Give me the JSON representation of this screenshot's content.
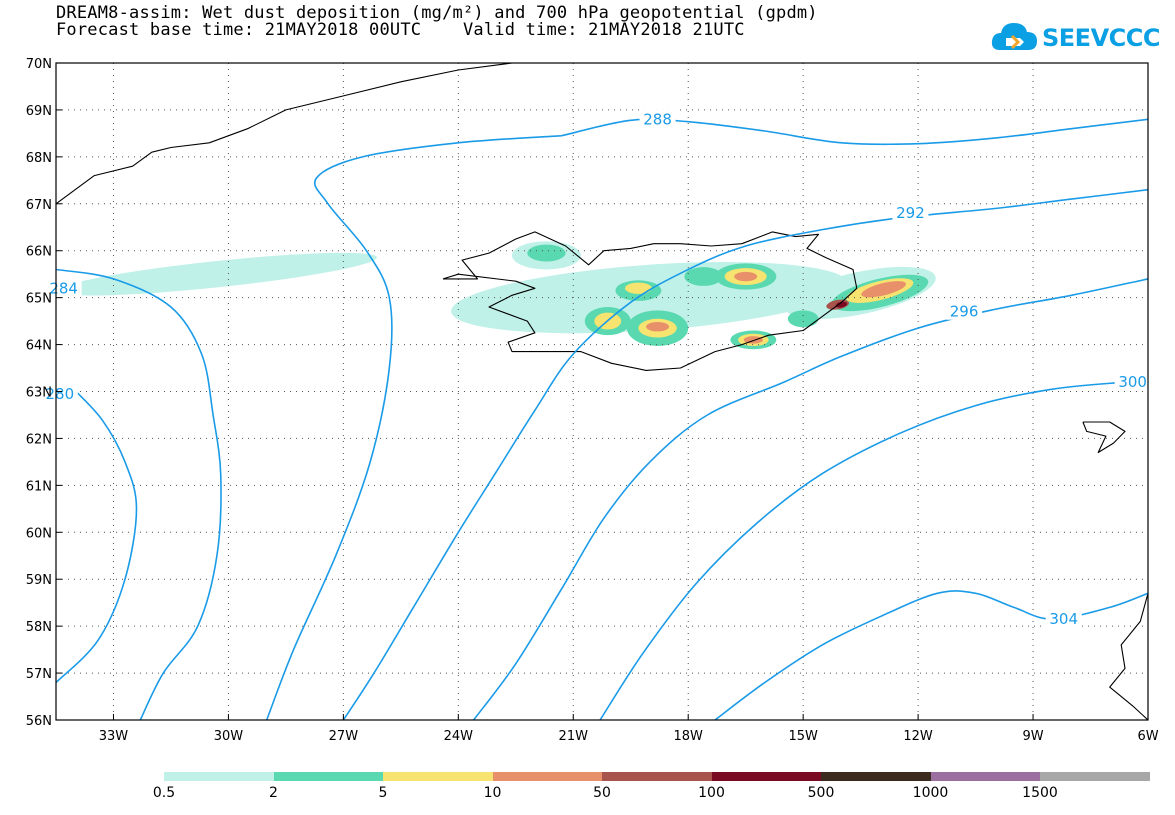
{
  "title": {
    "line1": "DREAM8-assim: Wet dust deposition (mg/m²) and 700 hPa geopotential (gpdm)",
    "line2": "Forecast base time: 21MAY2018 00UTC    Valid time: 21MAY2018 21UTC"
  },
  "logo": {
    "text": "SEEVCCC",
    "icon": "cloud-icon"
  },
  "chart_data": {
    "type": "map",
    "projection": "lat-lon",
    "xlim": [
      -34.5,
      -6
    ],
    "ylim": [
      56,
      70
    ],
    "grid": "dotted",
    "x_ticks": [
      {
        "value": -33,
        "label": "33W"
      },
      {
        "value": -30,
        "label": "30W"
      },
      {
        "value": -27,
        "label": "27W"
      },
      {
        "value": -24,
        "label": "24W"
      },
      {
        "value": -21,
        "label": "21W"
      },
      {
        "value": -18,
        "label": "18W"
      },
      {
        "value": -15,
        "label": "15W"
      },
      {
        "value": -12,
        "label": "12W"
      },
      {
        "value": -9,
        "label": "9W"
      },
      {
        "value": -6,
        "label": "6W"
      }
    ],
    "y_ticks": [
      {
        "value": 70,
        "label": "70N"
      },
      {
        "value": 69,
        "label": "69N"
      },
      {
        "value": 68,
        "label": "68N"
      },
      {
        "value": 67,
        "label": "67N"
      },
      {
        "value": 66,
        "label": "66N"
      },
      {
        "value": 65,
        "label": "65N"
      },
      {
        "value": 64,
        "label": "64N"
      },
      {
        "value": 63,
        "label": "63N"
      },
      {
        "value": 62,
        "label": "62N"
      },
      {
        "value": 61,
        "label": "61N"
      },
      {
        "value": 60,
        "label": "60N"
      },
      {
        "value": 59,
        "label": "59N"
      },
      {
        "value": 58,
        "label": "58N"
      },
      {
        "value": 57,
        "label": "57N"
      },
      {
        "value": 56,
        "label": "56N"
      }
    ],
    "contour_color": "#1a9be8",
    "contours": [
      {
        "label": "284",
        "label_pos": [
          -34.3,
          65.2
        ],
        "points": [
          [
            -34.5,
            65.6
          ],
          [
            -33,
            65.4
          ],
          [
            -31.5,
            64.8
          ],
          [
            -30.7,
            63.8
          ],
          [
            -30.4,
            62.5
          ],
          [
            -30.2,
            61.2
          ],
          [
            -30.3,
            59.5
          ],
          [
            -30.8,
            58
          ],
          [
            -31.7,
            57
          ],
          [
            -32.3,
            56
          ]
        ]
      },
      {
        "label": "280",
        "label_pos": [
          -34.4,
          62.95
        ],
        "points": [
          [
            -34.1,
            63.1
          ],
          [
            -33.3,
            62.4
          ],
          [
            -32.7,
            61.5
          ],
          [
            -32.4,
            60.5
          ],
          [
            -32.7,
            59
          ],
          [
            -33.4,
            57.7
          ],
          [
            -34.5,
            56.8
          ]
        ]
      },
      {
        "label": "",
        "label_pos": null,
        "points": [
          [
            -21.3,
            68.45
          ],
          [
            -24,
            68.3
          ],
          [
            -26.5,
            68
          ],
          [
            -27.7,
            67.55
          ],
          [
            -27.4,
            67
          ],
          [
            -26.4,
            66
          ],
          [
            -25.8,
            65
          ],
          [
            -25.8,
            63.5
          ],
          [
            -26.3,
            61.5
          ],
          [
            -27.2,
            59.5
          ],
          [
            -28.3,
            57.5
          ],
          [
            -29,
            56
          ]
        ]
      },
      {
        "label": "288",
        "label_pos": [
          -18.8,
          68.8
        ],
        "points": [
          [
            -21.3,
            68.45
          ],
          [
            -19.5,
            68.78
          ],
          [
            -18,
            68.75
          ],
          [
            -16,
            68.55
          ],
          [
            -14,
            68.3
          ],
          [
            -12,
            68.28
          ],
          [
            -10,
            68.4
          ],
          [
            -8,
            68.6
          ],
          [
            -6,
            68.8
          ]
        ]
      },
      {
        "label": "292",
        "label_pos": [
          -12.2,
          66.8
        ],
        "points": [
          [
            -6,
            67.3
          ],
          [
            -8,
            67.1
          ],
          [
            -10,
            66.9
          ],
          [
            -12.5,
            66.7
          ],
          [
            -14.5,
            66.45
          ],
          [
            -16.5,
            66.1
          ],
          [
            -18,
            65.6
          ],
          [
            -19.5,
            64.9
          ],
          [
            -21,
            63.8
          ],
          [
            -22,
            62.6
          ],
          [
            -23,
            61.3
          ],
          [
            -24,
            60
          ],
          [
            -25.1,
            58.5
          ],
          [
            -26.2,
            57
          ],
          [
            -27,
            56
          ]
        ]
      },
      {
        "label": "296",
        "label_pos": [
          -10.8,
          64.7
        ],
        "points": [
          [
            -6,
            65.4
          ],
          [
            -8,
            65.05
          ],
          [
            -10,
            64.75
          ],
          [
            -12,
            64.35
          ],
          [
            -14,
            63.75
          ],
          [
            -15.5,
            63.2
          ],
          [
            -17.5,
            62.5
          ],
          [
            -19,
            61.5
          ],
          [
            -20.2,
            60.3
          ],
          [
            -21.3,
            58.8
          ],
          [
            -22.5,
            57.2
          ],
          [
            -23.6,
            56
          ]
        ]
      },
      {
        "label": "300",
        "label_pos": [
          -6.4,
          63.2
        ],
        "points": [
          [
            -6.6,
            63.2
          ],
          [
            -8.5,
            63.05
          ],
          [
            -10.5,
            62.7
          ],
          [
            -12.5,
            62.1
          ],
          [
            -14.5,
            61.25
          ],
          [
            -16.2,
            60.2
          ],
          [
            -17.8,
            58.9
          ],
          [
            -19.2,
            57.4
          ],
          [
            -20.3,
            56
          ]
        ]
      },
      {
        "label": "304",
        "label_pos": [
          -8.2,
          58.15
        ],
        "points": [
          [
            -6,
            58.7
          ],
          [
            -7,
            58.4
          ],
          [
            -8.5,
            58.15
          ],
          [
            -9.5,
            58.4
          ],
          [
            -10.5,
            58.7
          ],
          [
            -11.5,
            58.7
          ],
          [
            -13,
            58.2
          ],
          [
            -14.5,
            57.6
          ],
          [
            -16,
            56.8
          ],
          [
            -17.3,
            56
          ]
        ]
      }
    ],
    "legend": {
      "labels": [
        "0.5",
        "2",
        "5",
        "10",
        "50",
        "100",
        "500",
        "1000",
        "1500"
      ],
      "colors": [
        "#bff1e8",
        "#5ad9b0",
        "#f7e36f",
        "#e8906a",
        "#a8534c",
        "#7a0a22",
        "#3b2a1e",
        "#9b6fa0",
        "#a7a7a7"
      ]
    },
    "deposition": [
      {
        "level": 0,
        "cx": -30.3,
        "cy": 65.5,
        "rx": 4.2,
        "ry": 0.28,
        "rot": -6
      },
      {
        "level": 0,
        "cx": -19,
        "cy": 65.0,
        "rx": 5.2,
        "ry": 0.7,
        "rot": -4
      },
      {
        "level": 0,
        "cx": -13.5,
        "cy": 65.1,
        "rx": 2.0,
        "ry": 0.45,
        "rot": -12
      },
      {
        "level": 0,
        "cx": -21.7,
        "cy": 65.9,
        "rx": 0.9,
        "ry": 0.3,
        "rot": 0
      },
      {
        "level": 1,
        "cx": -21.7,
        "cy": 65.95,
        "rx": 0.5,
        "ry": 0.18,
        "rot": 0
      },
      {
        "level": 1,
        "cx": -20.1,
        "cy": 64.5,
        "rx": 0.6,
        "ry": 0.3,
        "rot": 0
      },
      {
        "level": 1,
        "cx": -18.8,
        "cy": 64.35,
        "rx": 0.8,
        "ry": 0.38,
        "rot": 0
      },
      {
        "level": 1,
        "cx": -19.3,
        "cy": 65.15,
        "rx": 0.6,
        "ry": 0.22,
        "rot": 0
      },
      {
        "level": 1,
        "cx": -16.5,
        "cy": 65.45,
        "rx": 0.8,
        "ry": 0.28,
        "rot": 0
      },
      {
        "level": 1,
        "cx": -17.6,
        "cy": 65.45,
        "rx": 0.5,
        "ry": 0.2,
        "rot": 0
      },
      {
        "level": 1,
        "cx": -16.3,
        "cy": 64.1,
        "rx": 0.6,
        "ry": 0.2,
        "rot": 0
      },
      {
        "level": 1,
        "cx": -15.0,
        "cy": 64.55,
        "rx": 0.4,
        "ry": 0.18,
        "rot": 0
      },
      {
        "level": 1,
        "cx": -13.0,
        "cy": 65.1,
        "rx": 1.3,
        "ry": 0.3,
        "rot": -14
      },
      {
        "level": 2,
        "cx": -20.1,
        "cy": 64.5,
        "rx": 0.35,
        "ry": 0.18,
        "rot": 0
      },
      {
        "level": 2,
        "cx": -18.8,
        "cy": 64.35,
        "rx": 0.5,
        "ry": 0.2,
        "rot": 0
      },
      {
        "level": 2,
        "cx": -19.3,
        "cy": 65.2,
        "rx": 0.35,
        "ry": 0.12,
        "rot": 0
      },
      {
        "level": 2,
        "cx": -16.5,
        "cy": 65.45,
        "rx": 0.55,
        "ry": 0.18,
        "rot": 0
      },
      {
        "level": 2,
        "cx": -16.3,
        "cy": 64.1,
        "rx": 0.4,
        "ry": 0.13,
        "rot": 0
      },
      {
        "level": 2,
        "cx": -13.0,
        "cy": 65.15,
        "rx": 0.9,
        "ry": 0.2,
        "rot": -14
      },
      {
        "level": 3,
        "cx": -18.8,
        "cy": 64.38,
        "rx": 0.3,
        "ry": 0.1,
        "rot": 0
      },
      {
        "level": 3,
        "cx": -16.5,
        "cy": 65.45,
        "rx": 0.3,
        "ry": 0.1,
        "rot": 0
      },
      {
        "level": 3,
        "cx": -16.3,
        "cy": 64.1,
        "rx": 0.25,
        "ry": 0.08,
        "rot": 0
      },
      {
        "level": 3,
        "cx": -12.9,
        "cy": 65.18,
        "rx": 0.6,
        "ry": 0.13,
        "rot": -14
      },
      {
        "level": 4,
        "cx": -14.1,
        "cy": 64.85,
        "rx": 0.3,
        "ry": 0.1,
        "rot": -10
      },
      {
        "level": 5,
        "cx": -14.0,
        "cy": 64.85,
        "rx": 0.15,
        "ry": 0.06,
        "rot": -10
      }
    ],
    "coast": [
      {
        "name": "iceland",
        "points": [
          [
            -24.4,
            65.4
          ],
          [
            -23.5,
            65.4
          ],
          [
            -23.9,
            65.8
          ],
          [
            -23.2,
            65.95
          ],
          [
            -22.5,
            66.25
          ],
          [
            -22.0,
            66.4
          ],
          [
            -21.2,
            66.1
          ],
          [
            -20.6,
            65.7
          ],
          [
            -20.2,
            66.0
          ],
          [
            -19.5,
            66.05
          ],
          [
            -18.9,
            66.15
          ],
          [
            -18.2,
            66.15
          ],
          [
            -17.4,
            66.1
          ],
          [
            -16.6,
            66.15
          ],
          [
            -15.8,
            66.4
          ],
          [
            -15.2,
            66.3
          ],
          [
            -14.6,
            66.35
          ],
          [
            -14.9,
            66.05
          ],
          [
            -14.4,
            65.85
          ],
          [
            -13.7,
            65.6
          ],
          [
            -13.6,
            65.2
          ],
          [
            -14.0,
            64.9
          ],
          [
            -14.5,
            64.6
          ],
          [
            -15.0,
            64.3
          ],
          [
            -15.9,
            64.2
          ],
          [
            -16.6,
            64.0
          ],
          [
            -17.3,
            63.85
          ],
          [
            -18.2,
            63.5
          ],
          [
            -19.1,
            63.45
          ],
          [
            -20.0,
            63.6
          ],
          [
            -20.8,
            63.85
          ],
          [
            -21.7,
            63.85
          ],
          [
            -22.6,
            63.85
          ],
          [
            -22.7,
            64.05
          ],
          [
            -22.0,
            64.25
          ],
          [
            -22.2,
            64.5
          ],
          [
            -23.2,
            64.8
          ],
          [
            -22.6,
            65.05
          ],
          [
            -22.0,
            65.2
          ],
          [
            -22.5,
            65.35
          ],
          [
            -24.0,
            65.5
          ],
          [
            -24.4,
            65.4
          ]
        ]
      },
      {
        "name": "greenland",
        "points": [
          [
            -22.6,
            70
          ],
          [
            -24,
            69.85
          ],
          [
            -25.5,
            69.6
          ],
          [
            -27,
            69.3
          ],
          [
            -28.5,
            69
          ],
          [
            -29.5,
            68.6
          ],
          [
            -30.5,
            68.3
          ],
          [
            -31.5,
            68.2
          ],
          [
            -32,
            68.1
          ],
          [
            -32.5,
            67.8
          ],
          [
            -33.5,
            67.6
          ],
          [
            -34.5,
            67
          ]
        ]
      },
      {
        "name": "faroe",
        "points": [
          [
            -7.7,
            62.35
          ],
          [
            -7.0,
            62.35
          ],
          [
            -6.6,
            62.15
          ],
          [
            -6.9,
            61.9
          ],
          [
            -7.3,
            61.7
          ],
          [
            -7.1,
            62.05
          ],
          [
            -7.6,
            62.15
          ],
          [
            -7.7,
            62.35
          ]
        ]
      },
      {
        "name": "scotland",
        "points": [
          [
            -6,
            58.7
          ],
          [
            -6.2,
            58.1
          ],
          [
            -6.7,
            57.6
          ],
          [
            -6.6,
            57.1
          ],
          [
            -7.0,
            56.7
          ],
          [
            -6.4,
            56.3
          ],
          [
            -6.0,
            56.0
          ]
        ]
      }
    ]
  }
}
